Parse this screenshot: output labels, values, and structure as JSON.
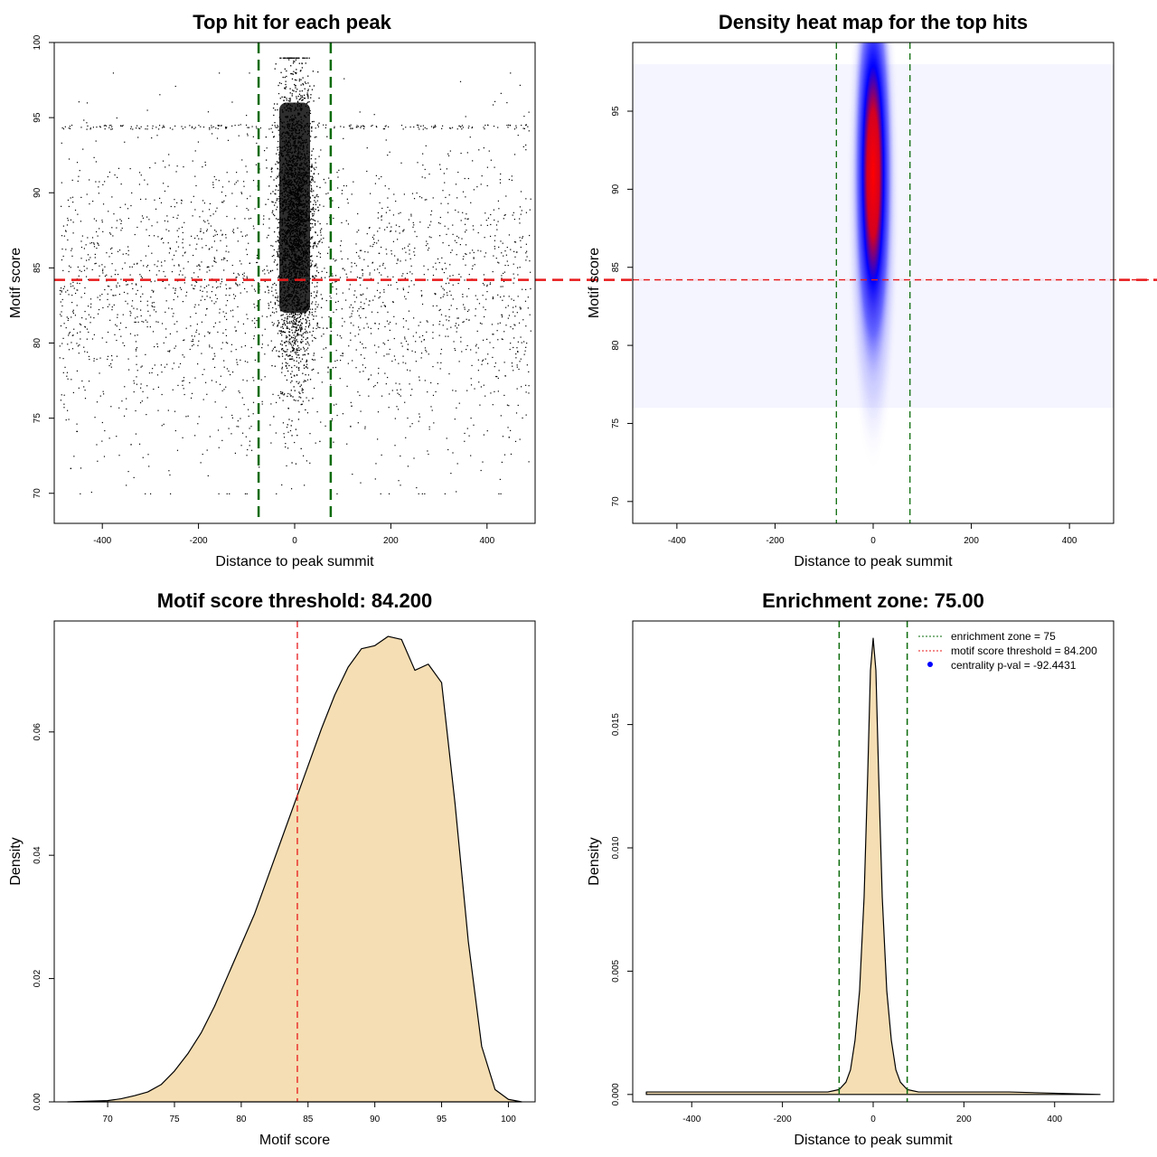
{
  "colors": {
    "threshold_red": "#e8191a",
    "zone_green": "#0a6b0a",
    "density_fill": "#f5deb3",
    "heat_low": "#ffffff",
    "heat_mid": "#0000ff",
    "heat_high": "#ff0000",
    "legend_dot": "#0000ff"
  },
  "chart_data": [
    {
      "type": "scatter",
      "title": "Top hit for each peak",
      "xlabel": "Distance to peak summit",
      "ylabel": "Motif score",
      "xlim": [
        -500,
        500
      ],
      "ylim": [
        68,
        100
      ],
      "xticks": [
        -400,
        -200,
        0,
        200,
        400
      ],
      "yticks": [
        70,
        75,
        80,
        85,
        90,
        95,
        100
      ],
      "threshold_y": 84.2,
      "zone_x": [
        -75,
        75
      ],
      "grid": false,
      "point_groups": [
        {
          "name": "",
          "x_range": [
            -490,
            490
          ],
          "y_range": [
            70,
            98
          ],
          "count": 2600
        },
        {
          "name": "",
          "x_range": [
            -75,
            75
          ],
          "y_range": [
            72,
            99
          ],
          "count": 3000
        }
      ]
    },
    {
      "type": "heatmap",
      "title": "Density heat map for the top hits",
      "xlabel": "Distance to peak summit",
      "ylabel": "Motif score",
      "xlim": [
        -490,
        490
      ],
      "ylim": [
        68.6,
        99.4
      ],
      "xticks": [
        -400,
        -200,
        0,
        200,
        400
      ],
      "yticks": [
        70,
        75,
        80,
        85,
        90,
        95
      ],
      "threshold_y": 84.2,
      "zone_x": [
        -75,
        75
      ],
      "hotspot": {
        "x": 0,
        "y": 91,
        "x_spread": 20,
        "y_spread": 6
      }
    },
    {
      "type": "area",
      "title": "Motif score threshold: 84.200",
      "xlabel": "Motif score",
      "ylabel": "Density",
      "xlim": [
        66,
        102
      ],
      "ylim": [
        0,
        0.078
      ],
      "xticks": [
        70,
        75,
        80,
        85,
        90,
        95,
        100
      ],
      "yticks": [
        0.0,
        0.02,
        0.04,
        0.06
      ],
      "ytick_labels": [
        "0.00",
        "0.02",
        "0.04",
        "0.06"
      ],
      "threshold_x": 84.2,
      "x": [
        67,
        70,
        71,
        72,
        73,
        74,
        75,
        76,
        77,
        78,
        79,
        80,
        81,
        82,
        83,
        84,
        84.2,
        85,
        86,
        87,
        88,
        89,
        90,
        91,
        92,
        93,
        94,
        95,
        96,
        97,
        98,
        99,
        100,
        101
      ],
      "y": [
        0.0,
        0.0002,
        0.0005,
        0.001,
        0.0016,
        0.0028,
        0.005,
        0.0078,
        0.0112,
        0.0155,
        0.0205,
        0.0255,
        0.0305,
        0.0365,
        0.0425,
        0.0485,
        0.0497,
        0.0545,
        0.0605,
        0.066,
        0.0705,
        0.0735,
        0.074,
        0.0755,
        0.075,
        0.07,
        0.071,
        0.068,
        0.0485,
        0.026,
        0.009,
        0.002,
        0.0004,
        0.0
      ]
    },
    {
      "type": "area",
      "title": "Enrichment zone: 75.00",
      "xlabel": "Distance to peak summit",
      "ylabel": "Density",
      "xlim": [
        -530,
        530
      ],
      "ylim": [
        -0.0003,
        0.0192
      ],
      "xticks": [
        -400,
        -200,
        0,
        200,
        400
      ],
      "yticks": [
        0.0,
        0.005,
        0.01,
        0.015
      ],
      "ytick_labels": [
        "0.000",
        "0.005",
        "0.010",
        "0.015"
      ],
      "zone_x": [
        -75,
        75
      ],
      "x": [
        -500,
        -300,
        -100,
        -75,
        -60,
        -50,
        -40,
        -30,
        -20,
        -12,
        -6,
        0,
        6,
        12,
        20,
        30,
        40,
        50,
        60,
        75,
        100,
        300,
        500
      ],
      "y": [
        0.0001,
        0.0001,
        0.0001,
        0.0002,
        0.0005,
        0.001,
        0.0022,
        0.0042,
        0.008,
        0.013,
        0.0172,
        0.0185,
        0.0172,
        0.013,
        0.008,
        0.0042,
        0.0022,
        0.001,
        0.0005,
        0.0002,
        0.0001,
        0.0001,
        0.0
      ],
      "legend": {
        "position": "top-right",
        "entries": [
          {
            "label": "enrichment zone = 75",
            "style": "dotted-green"
          },
          {
            "label": "motif score threshold = 84.200",
            "style": "dotted-red"
          },
          {
            "label": "centrality p-val = -92.4431",
            "style": "dot-blue"
          }
        ]
      }
    }
  ]
}
